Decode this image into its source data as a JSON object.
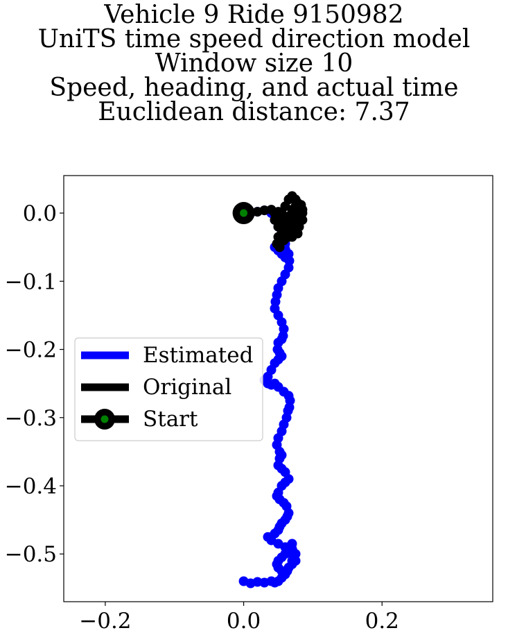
{
  "title_lines": [
    "Vehicle 9 Ride 9150982",
    "UniTS time speed direction model",
    "Window size 10",
    "Speed, heading, and actual time",
    "Euclidean distance: 7.37"
  ],
  "chart_data": {
    "type": "line",
    "title": "Vehicle 9 Ride 9150982 UniTS time speed direction model Window size 10 Speed, heading, and actual time Euclidean distance: 7.37",
    "xlabel": "",
    "ylabel": "",
    "xlim": [
      -0.26,
      0.36
    ],
    "ylim": [
      -0.57,
      0.055
    ],
    "x_ticks": [
      -0.2,
      0.0,
      0.2
    ],
    "y_ticks": [
      0.0,
      -0.1,
      -0.2,
      -0.3,
      -0.4,
      -0.5
    ],
    "x_tick_labels": [
      "−0.2",
      "0.0",
      "0.2"
    ],
    "y_tick_labels": [
      "0.0",
      "−0.1",
      "−0.2",
      "−0.3",
      "−0.4",
      "−0.5"
    ],
    "grid": false,
    "legend_position": "center-left",
    "series": [
      {
        "name": "Estimated",
        "color": "#0000ff",
        "x": [
          0.0,
          0.01,
          0.02,
          0.03,
          0.04,
          0.045,
          0.05,
          0.055,
          0.06,
          0.065,
          0.06,
          0.055,
          0.05,
          0.045,
          0.052,
          0.058,
          0.063,
          0.066,
          0.065,
          0.06,
          0.055,
          0.05,
          0.048,
          0.046,
          0.045,
          0.05,
          0.055,
          0.058,
          0.057,
          0.055,
          0.05,
          0.049,
          0.052,
          0.055,
          0.05,
          0.045,
          0.04,
          0.035,
          0.03,
          0.035,
          0.04,
          0.045,
          0.05,
          0.058,
          0.065,
          0.067,
          0.066,
          0.064,
          0.062,
          0.058,
          0.055,
          0.05,
          0.048,
          0.052,
          0.055,
          0.052,
          0.05,
          0.055,
          0.06,
          0.065,
          0.06,
          0.055,
          0.05,
          0.048,
          0.052,
          0.058,
          0.062,
          0.065,
          0.063,
          0.06,
          0.055,
          0.052,
          0.05,
          0.045,
          0.035,
          0.04,
          0.05,
          0.06,
          0.065,
          0.06,
          0.055,
          0.05,
          0.048,
          0.05,
          0.055,
          0.058,
          0.06,
          0.063,
          0.065,
          0.07,
          0.075,
          0.073,
          0.07,
          0.068,
          0.065,
          0.07,
          0.075,
          0.07,
          0.065,
          0.063,
          0.06,
          0.055,
          0.05,
          0.045,
          0.04,
          0.03,
          0.02,
          0.01,
          0.0
        ],
        "y": [
          0.0,
          0.0,
          0.002,
          0.004,
          0.0,
          -0.01,
          -0.02,
          -0.03,
          -0.045,
          -0.06,
          -0.065,
          -0.06,
          -0.055,
          -0.05,
          -0.055,
          -0.06,
          -0.065,
          -0.07,
          -0.08,
          -0.09,
          -0.1,
          -0.11,
          -0.12,
          -0.13,
          -0.14,
          -0.15,
          -0.16,
          -0.17,
          -0.18,
          -0.185,
          -0.19,
          -0.2,
          -0.205,
          -0.21,
          -0.215,
          -0.22,
          -0.23,
          -0.24,
          -0.245,
          -0.25,
          -0.252,
          -0.25,
          -0.255,
          -0.262,
          -0.268,
          -0.275,
          -0.285,
          -0.29,
          -0.3,
          -0.31,
          -0.32,
          -0.33,
          -0.34,
          -0.35,
          -0.355,
          -0.36,
          -0.37,
          -0.375,
          -0.38,
          -0.39,
          -0.395,
          -0.4,
          -0.41,
          -0.415,
          -0.42,
          -0.425,
          -0.43,
          -0.44,
          -0.445,
          -0.45,
          -0.455,
          -0.46,
          -0.465,
          -0.47,
          -0.475,
          -0.48,
          -0.485,
          -0.49,
          -0.495,
          -0.5,
          -0.505,
          -0.51,
          -0.515,
          -0.52,
          -0.525,
          -0.53,
          -0.528,
          -0.524,
          -0.52,
          -0.515,
          -0.51,
          -0.505,
          -0.5,
          -0.495,
          -0.49,
          -0.485,
          -0.5,
          -0.51,
          -0.52,
          -0.525,
          -0.53,
          -0.535,
          -0.54,
          -0.542,
          -0.54,
          -0.542,
          -0.541,
          -0.543,
          -0.54
        ]
      },
      {
        "name": "Original",
        "color": "#000000",
        "x": [
          0.0,
          0.01,
          0.02,
          0.03,
          0.04,
          0.045,
          0.05,
          0.06,
          0.07,
          0.075,
          0.08,
          0.085,
          0.08,
          0.075,
          0.07,
          0.065,
          0.06,
          0.055,
          0.05,
          0.055,
          0.06,
          0.065,
          0.07,
          0.075,
          0.08,
          0.085,
          0.083,
          0.078,
          0.07,
          0.065,
          0.06,
          0.055,
          0.05,
          0.048,
          0.052,
          0.058,
          0.065,
          0.072,
          0.078,
          0.082,
          0.08,
          0.075,
          0.07,
          0.067,
          0.07,
          0.075,
          0.08,
          0.083,
          0.078,
          0.07,
          0.06,
          0.055,
          0.05,
          0.045,
          0.05,
          0.055,
          0.06,
          0.068,
          0.075,
          0.08,
          0.085,
          0.08,
          0.072,
          0.065,
          0.06
        ],
        "y": [
          0.0,
          0.0,
          0.002,
          0.004,
          0.005,
          0.0,
          -0.005,
          -0.01,
          -0.015,
          -0.02,
          -0.01,
          0.0,
          0.01,
          0.02,
          0.025,
          0.02,
          0.01,
          0.0,
          -0.01,
          -0.02,
          -0.03,
          -0.035,
          -0.025,
          -0.015,
          -0.005,
          0.005,
          0.012,
          0.015,
          0.005,
          -0.005,
          -0.015,
          -0.025,
          -0.035,
          -0.045,
          -0.05,
          -0.04,
          -0.03,
          -0.02,
          -0.01,
          0.0,
          0.008,
          0.01,
          0.0,
          -0.01,
          -0.02,
          -0.03,
          -0.02,
          -0.01,
          -0.03,
          -0.035,
          -0.02,
          -0.005,
          0.002,
          -0.01,
          -0.02,
          -0.025,
          -0.015,
          -0.005,
          0.003,
          0.0,
          -0.01,
          -0.02,
          -0.03,
          -0.035,
          -0.025
        ]
      }
    ],
    "start_point": {
      "name": "Start",
      "x": 0.0,
      "y": 0.0,
      "color": "#008000",
      "edge_color": "#000000"
    },
    "legend": [
      {
        "label": "Estimated",
        "color": "#0000ff",
        "marker": "none"
      },
      {
        "label": "Original",
        "color": "#000000",
        "marker": "none"
      },
      {
        "label": "Start",
        "color": "#000000",
        "marker": "circle"
      }
    ]
  }
}
